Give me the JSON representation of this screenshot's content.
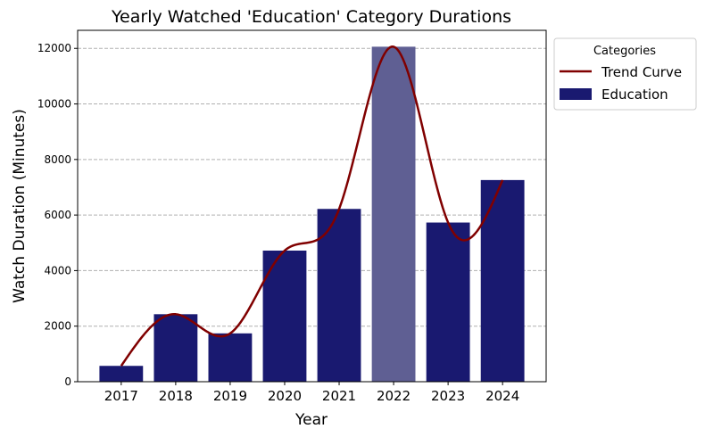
{
  "chart_data": {
    "type": "bar",
    "title": "Yearly Watched 'Education' Category Durations",
    "xlabel": "Year",
    "ylabel": "Watch Duration (Minutes)",
    "categories": [
      "2017",
      "2018",
      "2019",
      "2020",
      "2021",
      "2022",
      "2023",
      "2024"
    ],
    "series": [
      {
        "name": "Education",
        "type": "bar",
        "values": [
          570,
          2430,
          1740,
          4720,
          6220,
          12060,
          5730,
          7260
        ],
        "color": "#191970",
        "highlight_color": "#5f5f93",
        "highlight_index": 5
      },
      {
        "name": "Trend Curve",
        "type": "line",
        "values": [
          570,
          2430,
          1740,
          4720,
          6220,
          12060,
          5730,
          7260
        ],
        "color": "#800000",
        "smooth": true
      }
    ],
    "ylim": [
      0,
      12650
    ],
    "yticks": [
      0,
      2000,
      4000,
      6000,
      8000,
      10000,
      12000
    ],
    "grid": "y-dashed",
    "legend": {
      "title": "Categories",
      "placement": "outside-top-right",
      "entries": [
        "Trend Curve",
        "Education"
      ]
    }
  }
}
